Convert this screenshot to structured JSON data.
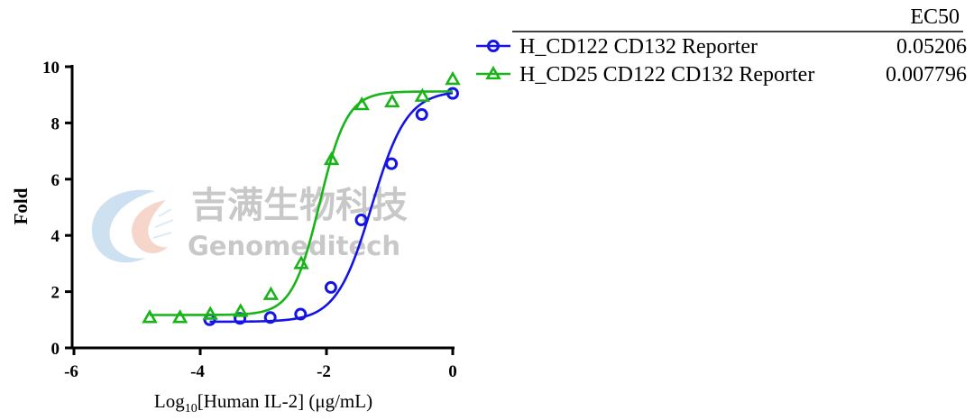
{
  "watermark": {
    "chinese": "吉满生物科技",
    "english": "Genomeditech"
  },
  "chart_data": {
    "type": "scatter",
    "xlabel_prefix": "Log",
    "xlabel_sub": "10",
    "xlabel_suffix": "[Human IL-2] (μg/mL)",
    "ylabel": "Fold",
    "xlim": [
      -6,
      0
    ],
    "ylim": [
      0,
      10
    ],
    "x_ticks": [
      -6,
      -4,
      -2,
      0
    ],
    "y_ticks": [
      0,
      2,
      4,
      6,
      8,
      10
    ],
    "legend_header": "EC50",
    "legend_position": "top-right",
    "series": [
      {
        "name": "H_CD122 CD132 Reporter",
        "ec50": "0.05206",
        "color": "#1414e6",
        "marker": "circle",
        "x": [
          -3.85,
          -3.37,
          -2.89,
          -2.41,
          -1.93,
          -1.45,
          -0.97,
          -0.49,
          0.0
        ],
        "y": [
          1.0,
          1.05,
          1.08,
          1.2,
          2.15,
          4.55,
          6.55,
          8.3,
          9.05
        ],
        "fit": {
          "bottom": 0.93,
          "top": 9.15,
          "log_ec50": -1.2835,
          "hill": 1.55
        }
      },
      {
        "name": "H_CD25 CD122 CD132 Reporter",
        "ec50": "0.007796",
        "color": "#19b419",
        "marker": "triangle",
        "x": [
          -4.8,
          -4.32,
          -3.84,
          -3.36,
          -2.88,
          -2.4,
          -1.92,
          -1.44,
          -0.96,
          -0.48,
          0.0
        ],
        "y": [
          1.08,
          1.08,
          1.2,
          1.3,
          1.9,
          3.0,
          6.7,
          8.65,
          8.75,
          8.95,
          9.55
        ],
        "fit": {
          "bottom": 1.17,
          "top": 9.12,
          "log_ec50": -2.108,
          "hill": 2.0
        }
      }
    ]
  }
}
